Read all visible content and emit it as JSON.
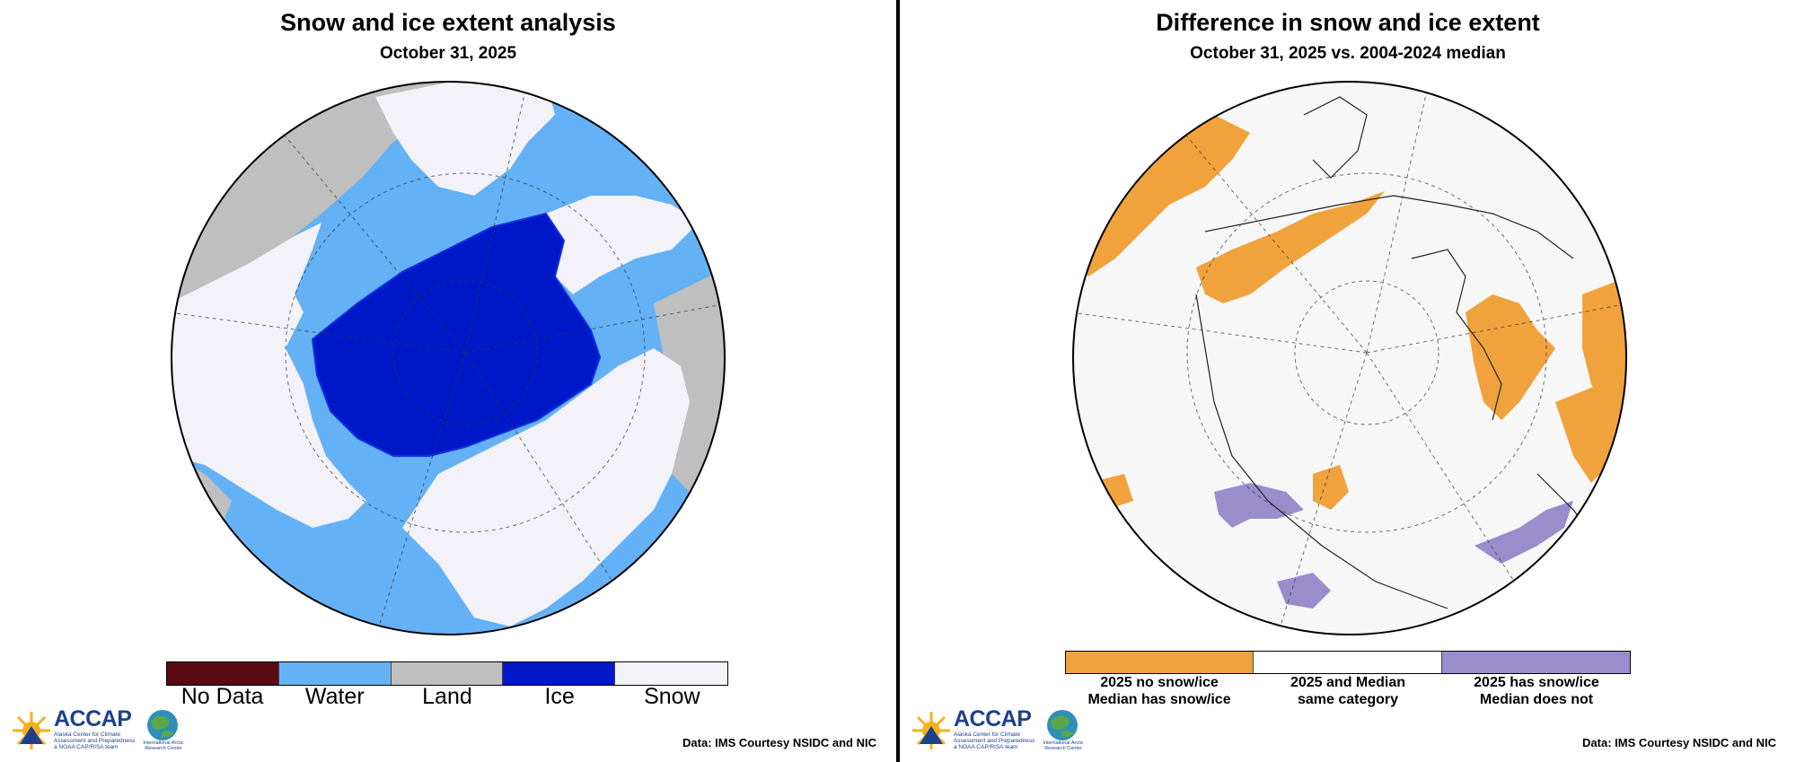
{
  "left_panel": {
    "title": "Snow and ice extent analysis",
    "subtitle": "October 31, 2025",
    "legend": [
      {
        "label": "No Data",
        "color": "#580b11"
      },
      {
        "label": "Water",
        "color": "#64b1f5"
      },
      {
        "label": "Land",
        "color": "#bfbfbf"
      },
      {
        "label": "Ice",
        "color": "#0018c8"
      },
      {
        "label": "Snow",
        "color": "#f2f2f8"
      }
    ],
    "credit": "Data: IMS Courtesy NSIDC and NIC"
  },
  "right_panel": {
    "title": "Difference in snow and ice extent",
    "subtitle": "October 31, 2025 vs. 2004-2024 median",
    "legend": [
      {
        "line1": "2025 no snow/ice",
        "line2": "Median has snow/ice",
        "color": "#f0a23c"
      },
      {
        "line1": "2025 and Median",
        "line2": "same category",
        "color": "#ffffff"
      },
      {
        "line1": "2025 has snow/ice",
        "line2": "Median does not",
        "color": "#9a8dcc"
      }
    ],
    "credit": "Data: IMS Courtesy NSIDC and NIC"
  },
  "logo": {
    "name": "ACCAP",
    "subtitle": "Alaska Center for Climate Assessment and Preparedness",
    "tagline": "a NOAA CAP/RISA team",
    "partner": "International Arctic Research Center"
  },
  "colors": {
    "water": "#64b1f5",
    "land": "#bfbfbf",
    "ice": "#0018c8",
    "ice_edge": "#1030e0",
    "snow": "#f2f2f8",
    "diff_less": "#f0a23c",
    "diff_more": "#9a8dcc",
    "diff_same": "#f7f7f7"
  }
}
